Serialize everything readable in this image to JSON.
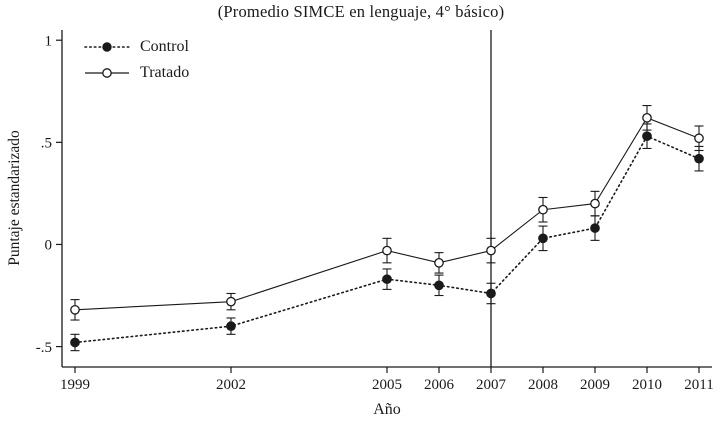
{
  "title": "(Promedio SIMCE en lenguaje, 4° básico)",
  "chart_data": {
    "type": "line",
    "title": "(Promedio SIMCE en lenguaje, 4° básico)",
    "xlabel": "Año",
    "ylabel": "Puntaje estandarizado",
    "x": [
      1999,
      2002,
      2005,
      2006,
      2007,
      2008,
      2009,
      2010,
      2011
    ],
    "series": [
      {
        "name": "Control",
        "marker": "filled",
        "line": "dotted",
        "values": [
          -0.48,
          -0.4,
          -0.17,
          -0.2,
          -0.24,
          0.03,
          0.08,
          0.53,
          0.42
        ],
        "errors": [
          0.04,
          0.04,
          0.05,
          0.05,
          0.05,
          0.06,
          0.06,
          0.06,
          0.06
        ]
      },
      {
        "name": "Tratado",
        "marker": "open",
        "line": "solid",
        "values": [
          -0.32,
          -0.28,
          -0.03,
          -0.09,
          -0.03,
          0.17,
          0.2,
          0.62,
          0.52
        ],
        "errors": [
          0.05,
          0.04,
          0.06,
          0.05,
          0.06,
          0.06,
          0.06,
          0.06,
          0.06
        ]
      }
    ],
    "ylim": [
      -0.6,
      1.05
    ],
    "yticks": [
      -0.5,
      0,
      0.5,
      1
    ],
    "ytick_labels": [
      "-.5",
      "0",
      ".5",
      "1"
    ],
    "vline_x": 2007,
    "legend_position": "top-left",
    "grid": false,
    "axis_color": "#1a1a1a"
  }
}
